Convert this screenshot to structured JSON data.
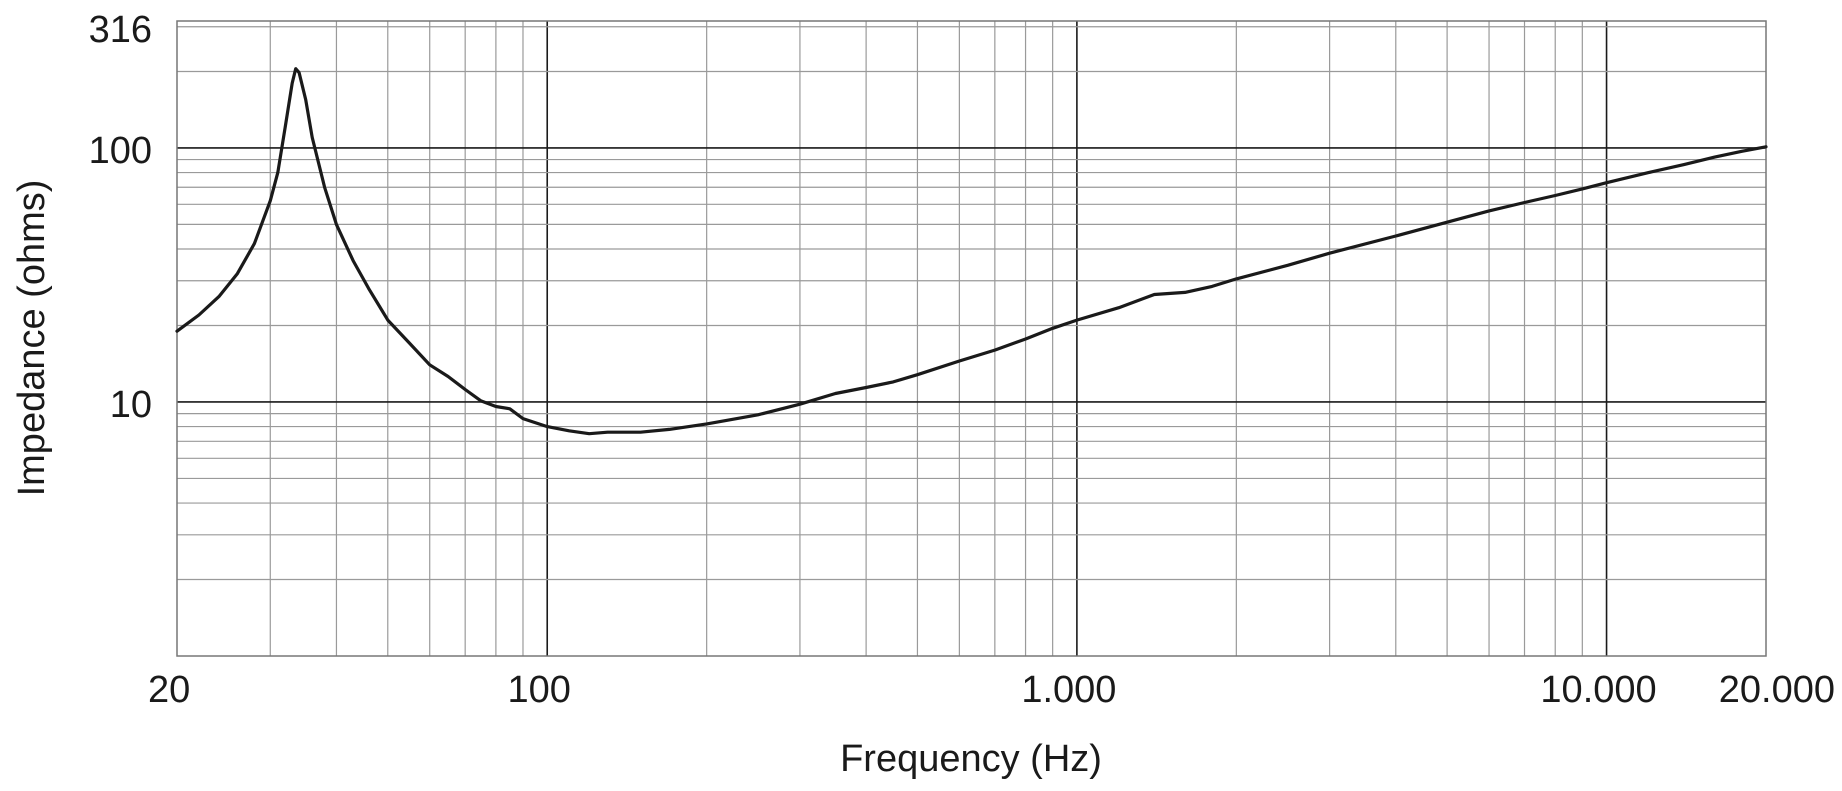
{
  "chart_data": {
    "type": "line",
    "xlabel": "Frequency (Hz)",
    "ylabel": "Impedance (ohms)",
    "x_scale": "log",
    "y_scale": "log",
    "xlim": [
      20,
      20000
    ],
    "ylim": [
      1,
      316
    ],
    "grid": true,
    "x_tick_labels": [
      {
        "value": 20,
        "label": "20"
      },
      {
        "value": 100,
        "label": "100"
      },
      {
        "value": 1000,
        "label": "1.000"
      },
      {
        "value": 10000,
        "label": "10.000"
      },
      {
        "value": 20000,
        "label": "20.000"
      }
    ],
    "y_tick_labels": [
      {
        "value": 10,
        "label": "10"
      },
      {
        "value": 100,
        "label": "100"
      },
      {
        "value": 316,
        "label": "316"
      }
    ],
    "series": [
      {
        "color": "#1a1a1a",
        "points": [
          [
            20,
            19
          ],
          [
            22,
            22
          ],
          [
            24,
            26
          ],
          [
            26,
            32
          ],
          [
            28,
            42
          ],
          [
            30,
            62
          ],
          [
            31,
            80
          ],
          [
            32,
            120
          ],
          [
            33,
            180
          ],
          [
            33.5,
            205
          ],
          [
            34,
            198
          ],
          [
            35,
            155
          ],
          [
            36,
            110
          ],
          [
            38,
            70
          ],
          [
            40,
            50
          ],
          [
            43,
            36
          ],
          [
            46,
            28
          ],
          [
            50,
            21
          ],
          [
            55,
            17
          ],
          [
            60,
            14
          ],
          [
            65,
            12.6
          ],
          [
            70,
            11.2
          ],
          [
            75,
            10.1
          ],
          [
            80,
            9.6
          ],
          [
            85,
            9.4
          ],
          [
            90,
            8.6
          ],
          [
            100,
            8.0
          ],
          [
            110,
            7.7
          ],
          [
            120,
            7.5
          ],
          [
            130,
            7.6
          ],
          [
            150,
            7.6
          ],
          [
            170,
            7.8
          ],
          [
            200,
            8.2
          ],
          [
            250,
            8.9
          ],
          [
            300,
            9.8
          ],
          [
            350,
            10.8
          ],
          [
            400,
            11.4
          ],
          [
            450,
            12.0
          ],
          [
            500,
            12.8
          ],
          [
            600,
            14.5
          ],
          [
            700,
            16.0
          ],
          [
            800,
            17.7
          ],
          [
            900,
            19.5
          ],
          [
            1000,
            21.0
          ],
          [
            1200,
            23.5
          ],
          [
            1400,
            26.5
          ],
          [
            1600,
            27.0
          ],
          [
            1800,
            28.5
          ],
          [
            2000,
            30.5
          ],
          [
            2500,
            34.5
          ],
          [
            3000,
            38.5
          ],
          [
            4000,
            45.0
          ],
          [
            5000,
            51.0
          ],
          [
            6000,
            56.5
          ],
          [
            7000,
            61.0
          ],
          [
            8000,
            65.0
          ],
          [
            9000,
            69.0
          ],
          [
            10000,
            73.0
          ],
          [
            12000,
            80.0
          ],
          [
            14000,
            86.0
          ],
          [
            16000,
            92.0
          ],
          [
            18000,
            97.0
          ],
          [
            20000,
            101
          ]
        ]
      }
    ]
  }
}
